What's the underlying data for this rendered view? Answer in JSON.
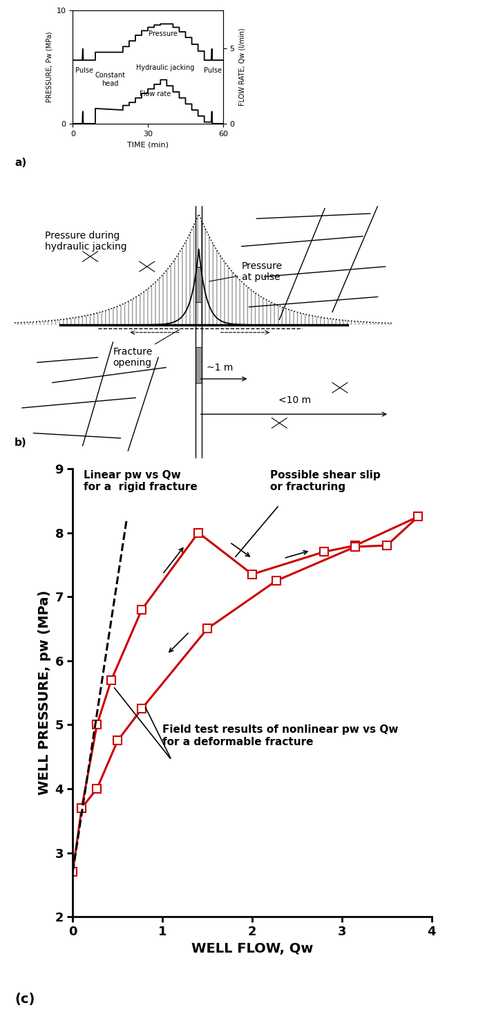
{
  "chart_data": [
    {
      "type": "line",
      "label": "a)",
      "x_label": "TIME (min)",
      "y_label": "PRESSURE, Pw (MPa)",
      "y2_label": "FLOW RATE, Qw (l/min)",
      "xlim": [
        0,
        60
      ],
      "xticks": [
        0,
        30,
        60
      ],
      "ylim": [
        0,
        10
      ],
      "yticks": [
        0,
        10
      ],
      "y2lim": [
        0,
        7.5
      ],
      "y2ticks": [
        0,
        5
      ],
      "series": [
        {
          "color": "#000000",
          "line_style": "solid",
          "x": [
            0,
            3.8,
            4,
            4.2,
            9,
            9,
            20,
            20,
            22.5,
            22.5,
            25,
            25,
            27.5,
            27.5,
            30,
            30,
            32.5,
            32.5,
            35,
            35,
            40,
            40,
            42.5,
            42.5,
            45,
            45,
            47.5,
            47.5,
            50,
            50,
            52.5,
            52.5,
            55.3,
            55.5,
            55.7,
            60
          ],
          "values": [
            5.6,
            5.6,
            6.6,
            5.6,
            5.6,
            6.3,
            6.3,
            6.8,
            6.8,
            7.3,
            7.3,
            7.8,
            7.8,
            8.2,
            8.2,
            8.5,
            8.5,
            8.7,
            8.7,
            8.8,
            8.8,
            8.5,
            8.5,
            8.1,
            8.1,
            7.6,
            7.6,
            7.0,
            7.0,
            6.4,
            6.4,
            5.6,
            5.6,
            6.6,
            5.6,
            5.6
          ]
        },
        {
          "color": "#000000",
          "line_style": "solid",
          "axis": "y2",
          "x": [
            0,
            3.8,
            4,
            4.2,
            9,
            9,
            20,
            20,
            22.5,
            22.5,
            25,
            25,
            27.5,
            27.5,
            30,
            30,
            32.5,
            32.5,
            35,
            35,
            37.5,
            37.5,
            40,
            40,
            42.5,
            42.5,
            45,
            45,
            47.5,
            47.5,
            50,
            50,
            52.5,
            52.5,
            55.3,
            55.5,
            55.7,
            60
          ],
          "values": [
            0,
            0,
            0.8,
            0,
            0,
            1.0,
            0.9,
            1.2,
            1.2,
            1.4,
            1.4,
            1.7,
            1.7,
            2.0,
            2.0,
            2.3,
            2.3,
            2.6,
            2.6,
            2.9,
            2.9,
            2.5,
            2.5,
            2.1,
            2.1,
            1.7,
            1.7,
            1.3,
            1.3,
            0.9,
            0.9,
            0.5,
            0.5,
            0.1,
            0.1,
            0.8,
            0,
            0
          ]
        }
      ],
      "annotations": [
        {
          "text": "Pressure",
          "x": 36,
          "y": 7.9
        },
        {
          "text": "Pulse",
          "x": 4.5,
          "y": 4.7
        },
        {
          "text": "Constant\nhead",
          "x": 15,
          "y": 3.9
        },
        {
          "text": "Hydraulic jacking",
          "x": 37,
          "y": 4.9
        },
        {
          "text": "Flow rate",
          "x": 33,
          "y": 2.6
        },
        {
          "text": "Pulse",
          "x": 56,
          "y": 4.7
        }
      ]
    },
    {
      "type": "line",
      "label": "(c)",
      "x_label": "WELL FLOW, Qw",
      "y_label": "WELL PRESSURE, pw (MPa)",
      "xlim": [
        0,
        4
      ],
      "xticks": [
        0,
        1,
        2,
        3,
        4
      ],
      "ylim": [
        2,
        9
      ],
      "yticks": [
        2,
        3,
        4,
        5,
        6,
        7,
        8,
        9
      ],
      "series": [
        {
          "color": "#cc0000",
          "marker": "square",
          "line_style": "solid",
          "x": [
            0,
            0.1,
            0.27,
            0.43,
            0.77,
            1.4,
            2.0,
            2.8,
            3.15,
            3.85,
            3.5,
            3.15,
            2.27,
            1.5,
            0.77,
            0.5,
            0.27,
            0.1
          ],
          "values": [
            2.7,
            3.7,
            5.0,
            5.7,
            6.8,
            8.0,
            7.35,
            7.7,
            7.8,
            8.25,
            7.8,
            7.78,
            7.25,
            6.5,
            5.25,
            4.75,
            4.0,
            3.7
          ]
        },
        {
          "color": "#000000",
          "line_style": "dashed",
          "x": [
            0,
            0.6
          ],
          "values": [
            2.7,
            8.2
          ]
        }
      ],
      "annotations": [
        {
          "text": "Linear pw vs Qw\nfor a  rigid fracture",
          "x": 0.12,
          "y": 8.98,
          "arrows": []
        },
        {
          "text": "Possible shear slip\nor fracturing",
          "x": 2.2,
          "y": 8.98,
          "arrows": [
            [
              1.8,
              7.6
            ]
          ]
        },
        {
          "text": "Field test results of nonlinear pw vs Qw\nfor a deformable fracture",
          "x": 1.0,
          "y": 5.0,
          "arrows": [
            [
              0.45,
              5.6
            ],
            [
              0.8,
              5.3
            ]
          ]
        }
      ]
    }
  ],
  "diagram": {
    "label": "b)",
    "texts": {
      "hydraulic": "Pressure during\nhydraulic jacking",
      "pulse": "Pressure\nat pulse",
      "opening": "Fracture\nopening",
      "near": "~1 m",
      "far": "<10 m"
    }
  }
}
